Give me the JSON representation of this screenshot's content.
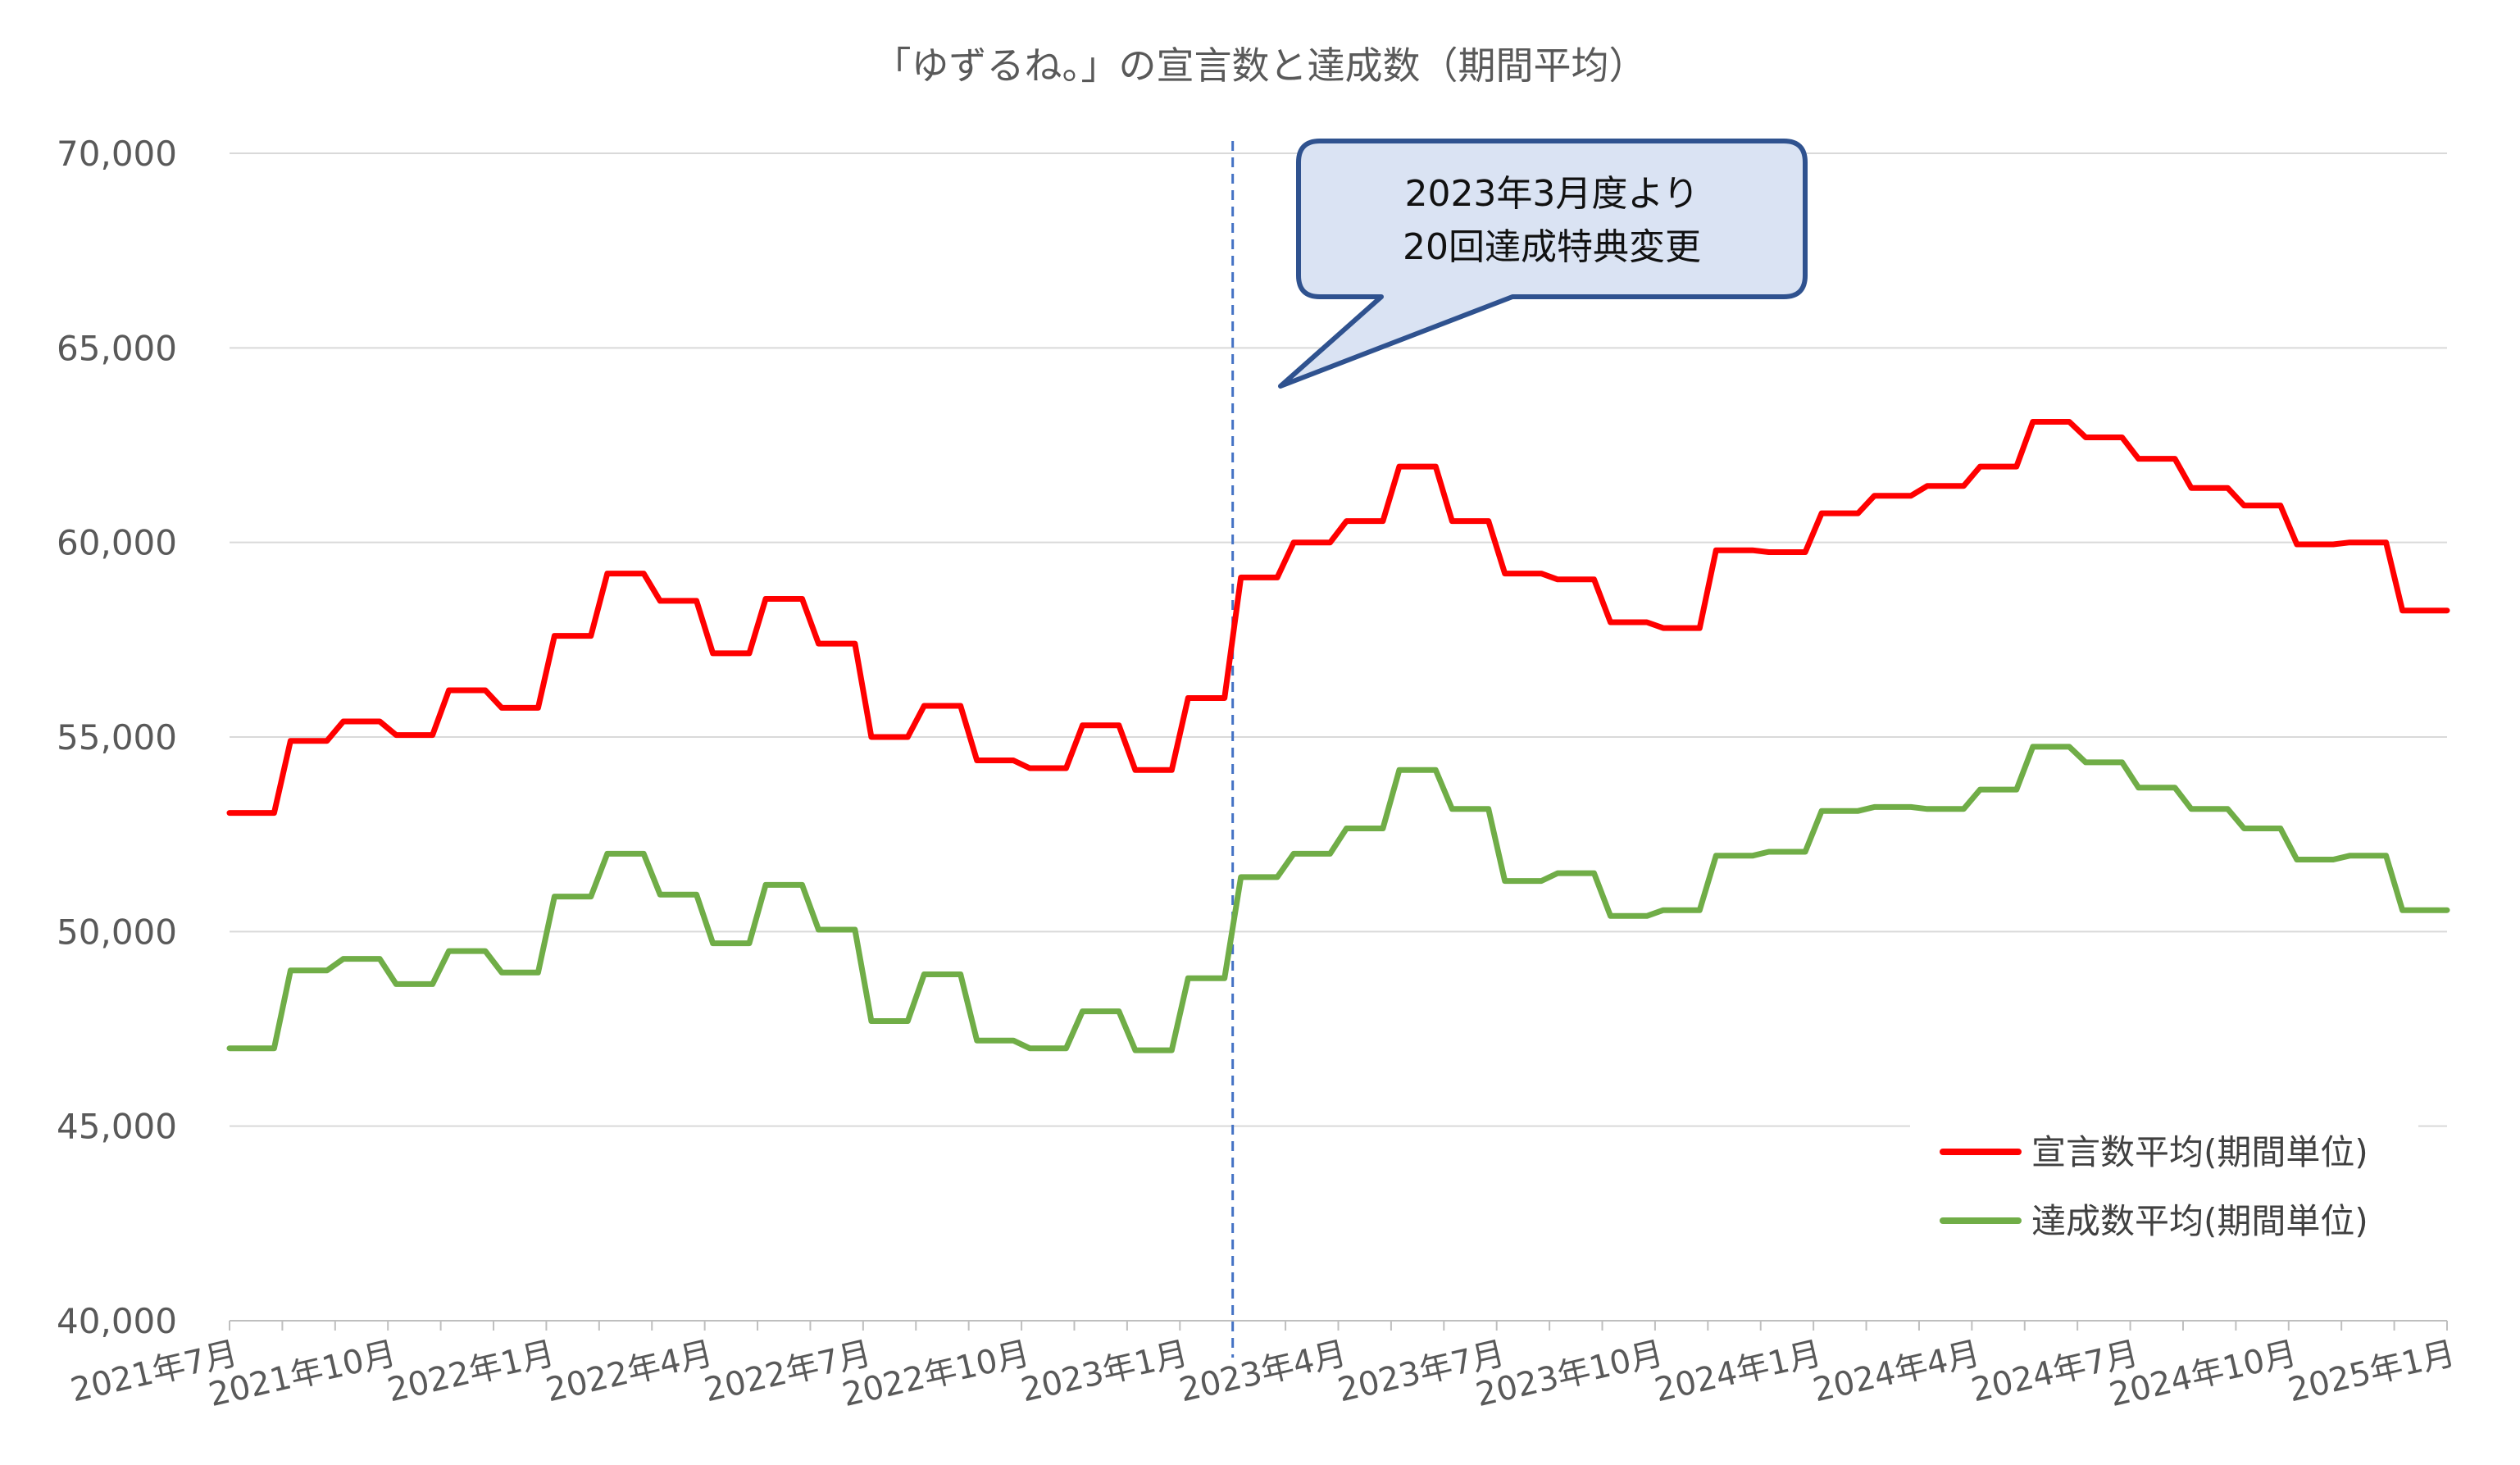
{
  "chart_data": {
    "type": "line",
    "title": "「ゆずるね。」の宣言数と達成数（期間平均）",
    "xlabel": "",
    "ylabel": "",
    "ylim": [
      40000,
      70000
    ],
    "yticks": [
      "40,000",
      "45,000",
      "50,000",
      "55,000",
      "60,000",
      "65,000",
      "70,000"
    ],
    "ytick_values": [
      40000,
      45000,
      50000,
      55000,
      60000,
      65000,
      70000
    ],
    "x_tick_labels": [
      "2021年7月",
      "2021年10月",
      "2022年1月",
      "2022年4月",
      "2022年7月",
      "2022年10月",
      "2023年1月",
      "2023年4月",
      "2023年7月",
      "2023年10月",
      "2024年1月",
      "2024年4月",
      "2024年7月",
      "2024年10月",
      "2025年1月"
    ],
    "x_tick_months": [
      0,
      3,
      6,
      9,
      12,
      15,
      18,
      21,
      24,
      27,
      30,
      33,
      36,
      39,
      42
    ],
    "x_range_months": [
      0,
      42
    ],
    "grid": true,
    "legend_position": "lower-right",
    "step_boundaries_months": [
      0,
      1,
      2,
      3,
      4,
      5,
      6,
      7,
      8,
      9,
      10,
      11,
      12,
      13,
      14,
      15,
      16,
      17,
      18,
      19,
      20,
      21,
      22,
      23,
      24,
      25,
      26,
      27,
      28,
      29,
      30,
      31,
      32,
      33,
      34,
      35,
      36,
      37,
      38,
      39,
      40,
      41,
      42
    ],
    "series": [
      {
        "name": "宣言数平均(期間単位)",
        "color": "#FF0000",
        "values": [
          53050,
          54900,
          55400,
          55050,
          56200,
          55750,
          57600,
          59200,
          58500,
          57150,
          58550,
          57400,
          55000,
          55800,
          54400,
          54200,
          55300,
          54150,
          56000,
          59100,
          60000,
          60550,
          61950,
          60550,
          59200,
          59050,
          57950,
          57800,
          59800,
          59750,
          60750,
          61200,
          61450,
          61950,
          63100,
          62700,
          62150,
          61400,
          60950,
          59950,
          60000,
          58250
        ]
      },
      {
        "name": "達成数平均(期間単位)",
        "color": "#70AD47",
        "values": [
          47000,
          49000,
          49300,
          48650,
          49500,
          48950,
          50900,
          52000,
          50950,
          49700,
          51200,
          50050,
          47700,
          48900,
          47200,
          47000,
          47950,
          46950,
          48800,
          51400,
          52000,
          52650,
          54150,
          53150,
          51300,
          51500,
          50400,
          50550,
          51950,
          52050,
          53100,
          53200,
          53150,
          53650,
          54750,
          54350,
          53700,
          53150,
          52650,
          51850,
          51950,
          50550
        ]
      }
    ],
    "marker_line": {
      "month": 19
    },
    "callout": {
      "lines": [
        "2023年3月度より",
        "20回達成特典変更"
      ]
    }
  },
  "colors": {
    "callout_fill": "#DAE3F3",
    "callout_stroke": "#2F528F",
    "grid": "#D9D9D9",
    "axis": "#BFBFBF",
    "marker_line": "#4472C4"
  }
}
